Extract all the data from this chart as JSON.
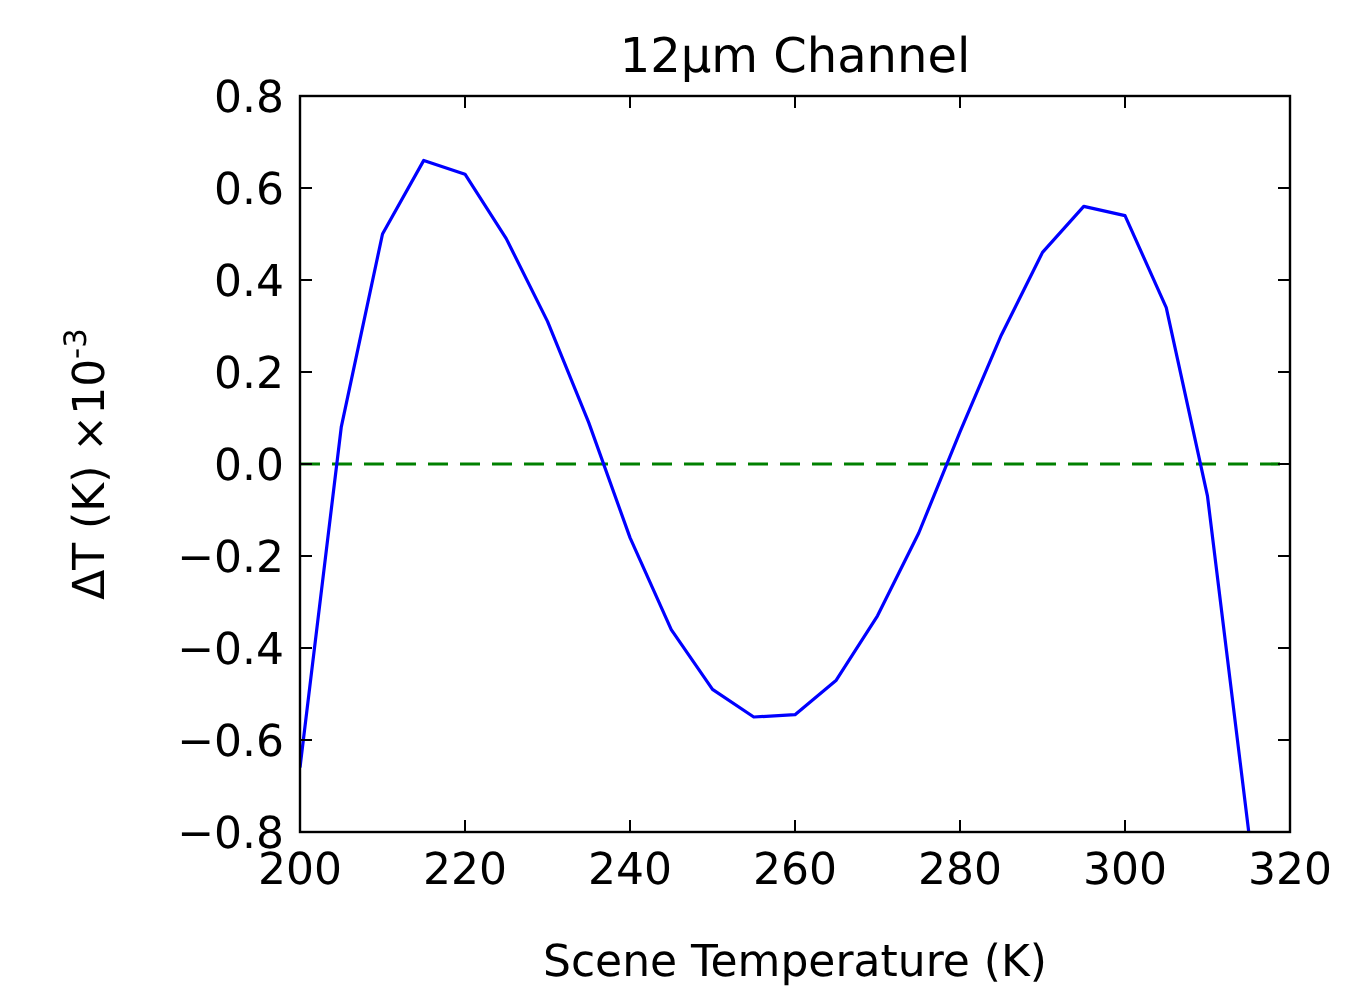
{
  "chart_data": {
    "type": "line",
    "title": "12μm Channel",
    "xlabel": "Scene Temperature (K)",
    "ylabel": "ΔT (K) ×10$^{-3}$",
    "x": [
      200,
      205,
      210,
      215,
      220,
      225,
      230,
      235,
      240,
      245,
      250,
      255,
      260,
      265,
      270,
      275,
      280,
      285,
      290,
      295,
      300,
      305,
      310,
      315
    ],
    "series": [
      {
        "color": "#0000ff",
        "values": [
          -0.66,
          0.08,
          0.5,
          0.66,
          0.63,
          0.49,
          0.31,
          0.09,
          -0.16,
          -0.36,
          -0.49,
          -0.55,
          -0.545,
          -0.47,
          -0.33,
          -0.15,
          0.07,
          0.28,
          0.46,
          0.56,
          0.54,
          0.34,
          -0.07,
          -0.8
        ]
      }
    ],
    "xlim": [
      200,
      320
    ],
    "ylim": [
      -0.8,
      0.8
    ],
    "xticks": [
      200,
      220,
      240,
      260,
      280,
      300,
      320
    ],
    "yticks": [
      -0.8,
      -0.6,
      -0.4,
      -0.2,
      {
        "value": 0,
        "label": "0.0"
      },
      0.2,
      0.4,
      0.6,
      0.8
    ],
    "ref_lines": [
      {
        "axis": "y",
        "value": 0,
        "color": "#008000",
        "line_style": "dashed"
      }
    ],
    "grid": false,
    "marker": "none",
    "line_style": "solid"
  }
}
